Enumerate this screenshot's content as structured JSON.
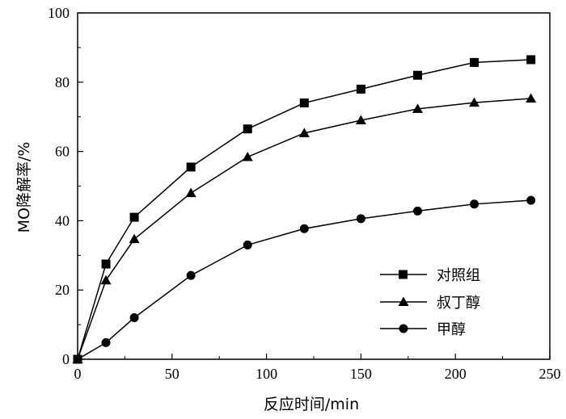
{
  "chart_data": {
    "type": "line",
    "title": "",
    "xlabel": "反应时间/min",
    "ylabel": "MO降解率/%",
    "xlim": [
      0,
      250
    ],
    "ylim": [
      0,
      100
    ],
    "x_ticks": [
      0,
      50,
      100,
      150,
      200,
      250
    ],
    "y_ticks": [
      0,
      20,
      40,
      60,
      80,
      100
    ],
    "grid": false,
    "legend_position": "lower-right",
    "series": [
      {
        "name": "对照组",
        "marker": "square",
        "x": [
          0,
          15,
          30,
          60,
          90,
          120,
          150,
          180,
          210,
          240
        ],
        "values": [
          0,
          27.5,
          41.0,
          55.5,
          66.5,
          74.0,
          78.0,
          82.0,
          85.7,
          86.5
        ]
      },
      {
        "name": "叔丁醇",
        "marker": "triangle",
        "x": [
          0,
          15,
          30,
          60,
          90,
          120,
          150,
          180,
          210,
          240
        ],
        "values": [
          0,
          22.8,
          34.7,
          48.0,
          58.4,
          65.3,
          69.0,
          72.3,
          74.1,
          75.3
        ]
      },
      {
        "name": "甲醇",
        "marker": "circle",
        "x": [
          0,
          15,
          30,
          60,
          90,
          120,
          150,
          180,
          210,
          240
        ],
        "values": [
          0,
          4.8,
          12.0,
          24.2,
          33.0,
          37.7,
          40.6,
          42.8,
          44.8,
          45.9
        ]
      }
    ]
  }
}
